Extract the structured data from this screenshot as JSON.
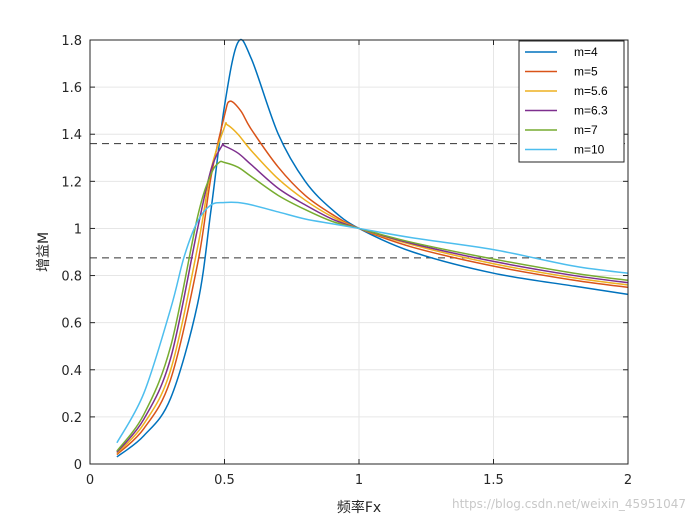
{
  "chart_data": {
    "type": "line",
    "xlabel": "频率Fx",
    "ylabel": "增益M",
    "xlim": [
      0,
      2
    ],
    "ylim": [
      0,
      1.8
    ],
    "xticks": [
      "0",
      "0.5",
      "1",
      "1.5",
      "2"
    ],
    "yticks": [
      "0",
      "0.2",
      "0.4",
      "0.6",
      "0.8",
      "1",
      "1.2",
      "1.4",
      "1.6",
      "1.8"
    ],
    "grid": true,
    "legend_position": "top-right",
    "ref_lines": [
      1.36,
      0.875
    ],
    "series": [
      {
        "name": "m=4",
        "color": "#0072BD",
        "points": [
          [
            0.1,
            0.03
          ],
          [
            0.2,
            0.12
          ],
          [
            0.3,
            0.28
          ],
          [
            0.4,
            0.68
          ],
          [
            0.45,
            1.08
          ],
          [
            0.5,
            1.52
          ],
          [
            0.55,
            1.79
          ],
          [
            0.6,
            1.72
          ],
          [
            0.7,
            1.4
          ],
          [
            0.8,
            1.2
          ],
          [
            0.9,
            1.08
          ],
          [
            1.0,
            1.0
          ],
          [
            1.2,
            0.9
          ],
          [
            1.5,
            0.81
          ],
          [
            1.8,
            0.755
          ],
          [
            2.0,
            0.72
          ]
        ]
      },
      {
        "name": "m=5",
        "color": "#D95319",
        "points": [
          [
            0.1,
            0.04
          ],
          [
            0.2,
            0.15
          ],
          [
            0.3,
            0.36
          ],
          [
            0.4,
            0.85
          ],
          [
            0.45,
            1.22
          ],
          [
            0.5,
            1.48
          ],
          [
            0.52,
            1.54
          ],
          [
            0.56,
            1.5
          ],
          [
            0.6,
            1.42
          ],
          [
            0.7,
            1.26
          ],
          [
            0.8,
            1.14
          ],
          [
            0.9,
            1.06
          ],
          [
            1.0,
            1.0
          ],
          [
            1.2,
            0.92
          ],
          [
            1.5,
            0.84
          ],
          [
            1.8,
            0.78
          ],
          [
            2.0,
            0.75
          ]
        ]
      },
      {
        "name": "m=5.6",
        "color": "#EDB120",
        "points": [
          [
            0.1,
            0.045
          ],
          [
            0.2,
            0.17
          ],
          [
            0.3,
            0.4
          ],
          [
            0.4,
            0.92
          ],
          [
            0.45,
            1.25
          ],
          [
            0.5,
            1.43
          ],
          [
            0.51,
            1.44
          ],
          [
            0.55,
            1.4
          ],
          [
            0.6,
            1.33
          ],
          [
            0.7,
            1.21
          ],
          [
            0.8,
            1.12
          ],
          [
            0.9,
            1.05
          ],
          [
            1.0,
            1.0
          ],
          [
            1.2,
            0.93
          ],
          [
            1.5,
            0.85
          ],
          [
            1.8,
            0.79
          ],
          [
            2.0,
            0.76
          ]
        ]
      },
      {
        "name": "m=6.3",
        "color": "#7E2F8E",
        "points": [
          [
            0.1,
            0.05
          ],
          [
            0.2,
            0.19
          ],
          [
            0.3,
            0.45
          ],
          [
            0.4,
            1.0
          ],
          [
            0.45,
            1.25
          ],
          [
            0.49,
            1.35
          ],
          [
            0.5,
            1.35
          ],
          [
            0.55,
            1.32
          ],
          [
            0.6,
            1.27
          ],
          [
            0.7,
            1.17
          ],
          [
            0.8,
            1.1
          ],
          [
            0.9,
            1.04
          ],
          [
            1.0,
            1.0
          ],
          [
            1.2,
            0.935
          ],
          [
            1.5,
            0.86
          ],
          [
            1.8,
            0.8
          ],
          [
            2.0,
            0.77
          ]
        ]
      },
      {
        "name": "m=7",
        "color": "#77AC30",
        "points": [
          [
            0.1,
            0.055
          ],
          [
            0.2,
            0.21
          ],
          [
            0.3,
            0.5
          ],
          [
            0.4,
            1.05
          ],
          [
            0.45,
            1.23
          ],
          [
            0.48,
            1.28
          ],
          [
            0.5,
            1.28
          ],
          [
            0.55,
            1.26
          ],
          [
            0.6,
            1.22
          ],
          [
            0.7,
            1.14
          ],
          [
            0.8,
            1.08
          ],
          [
            0.9,
            1.03
          ],
          [
            1.0,
            1.0
          ],
          [
            1.2,
            0.94
          ],
          [
            1.5,
            0.87
          ],
          [
            1.8,
            0.81
          ],
          [
            2.0,
            0.78
          ]
        ]
      },
      {
        "name": "m=10",
        "color": "#4DBEEE",
        "points": [
          [
            0.1,
            0.09
          ],
          [
            0.2,
            0.3
          ],
          [
            0.3,
            0.66
          ],
          [
            0.35,
            0.88
          ],
          [
            0.4,
            1.03
          ],
          [
            0.45,
            1.1
          ],
          [
            0.5,
            1.11
          ],
          [
            0.55,
            1.11
          ],
          [
            0.6,
            1.1
          ],
          [
            0.7,
            1.07
          ],
          [
            0.8,
            1.04
          ],
          [
            0.9,
            1.02
          ],
          [
            1.0,
            1.0
          ],
          [
            1.2,
            0.96
          ],
          [
            1.5,
            0.91
          ],
          [
            1.8,
            0.84
          ],
          [
            2.0,
            0.81
          ]
        ]
      }
    ]
  },
  "watermark": "https://blog.csdn.net/weixin_45951047"
}
